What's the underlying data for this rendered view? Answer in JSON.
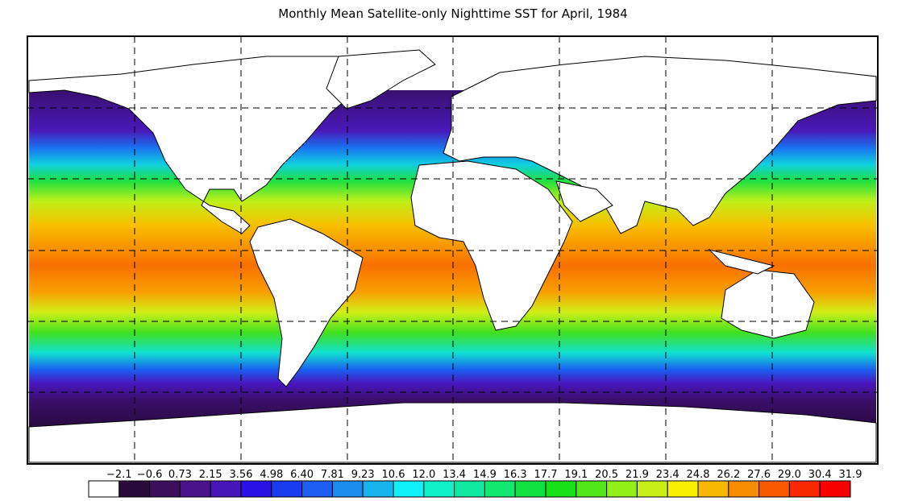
{
  "title": "Monthly Mean Satellite-only Nighttime SST for April, 1984",
  "legend": {
    "labels": [
      "−2.1",
      "−0.6",
      "0.73",
      "2.15",
      "3.56",
      "4.98",
      "6.40",
      "7.81",
      "9.23",
      "10.6",
      "12.0",
      "13.4",
      "14.9",
      "16.3",
      "17.7",
      "19.1",
      "20.5",
      "21.9",
      "23.4",
      "24.8",
      "26.2",
      "27.6",
      "29.0",
      "30.4",
      "31.9"
    ],
    "colors": [
      "#ffffff",
      "#2a0a3a",
      "#3d0f5a",
      "#4a138c",
      "#4716b8",
      "#2a12e6",
      "#1a3cf0",
      "#1e5ef2",
      "#1a8cf0",
      "#18b4f0",
      "#10f0f8",
      "#10f0c8",
      "#10e8a0",
      "#10e870",
      "#10e040",
      "#18e018",
      "#50e818",
      "#90f018",
      "#c8f018",
      "#f8f000",
      "#f8b800",
      "#f88c00",
      "#f85800",
      "#f82800",
      "#f80000"
    ]
  },
  "map": {
    "gridlines": "dashed",
    "land_color": "#ffffff",
    "coast_color": "#000000"
  }
}
